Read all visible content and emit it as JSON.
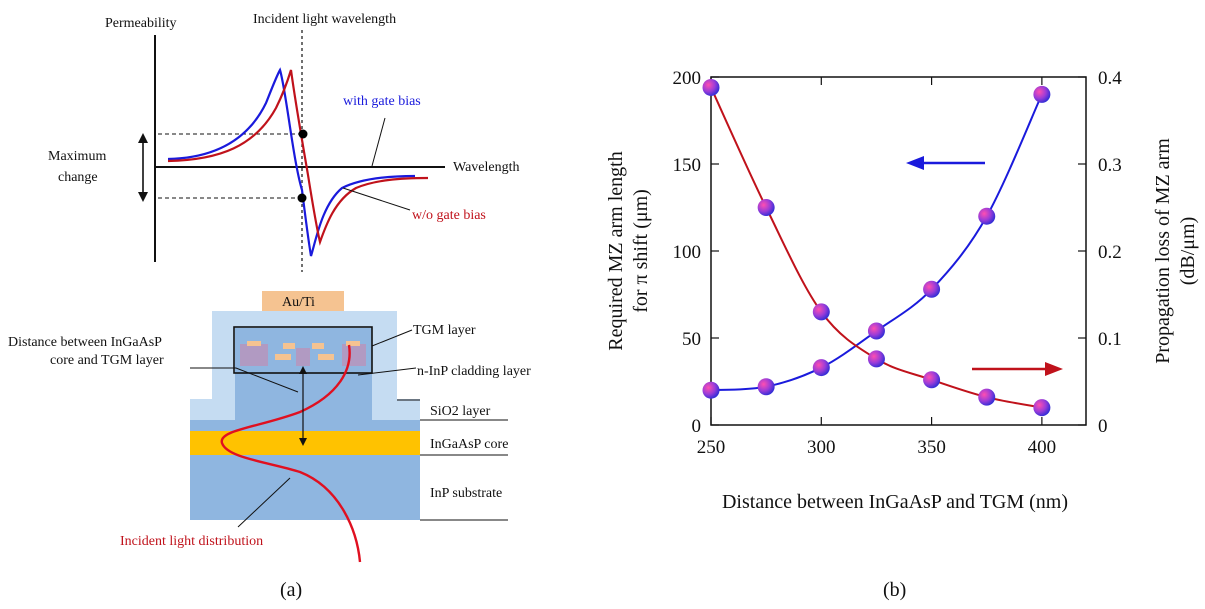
{
  "panel_a": {
    "permeability_label": "Permeability",
    "incident_wavelength_label": "Incident light wavelength",
    "with_gate_label": "with gate bias",
    "wo_gate_label": "w/o gate bias",
    "maximum_label": "Maximum",
    "change_label": "change",
    "wavelength_label": "Wavelength",
    "au_ti_label": "Au/Ti",
    "distance_label_line1": "Distance between InGaAsP",
    "distance_label_line2": "core and TGM layer",
    "tgm_layer_label": "TGM layer",
    "ninp_cladding_label": "n-InP cladding layer",
    "sio2_label": "SiO2 layer",
    "ingaasp_core_label": "InGaAsP core",
    "inp_substrate_label": "InP substrate",
    "incident_distribution_label": "Incident light distribution",
    "caption": "(a)",
    "colors": {
      "with_gate": "#1a1adc",
      "wo_gate": "#c0121b",
      "au_ti": "#f5c391",
      "core": "#ffc200",
      "substrate": "#8fb6e0",
      "sio2": "#c5dcf2",
      "tgm": "#b19ac2"
    }
  },
  "panel_b": {
    "caption": "(b)",
    "chart_data": {
      "type": "scatter",
      "xlabel": "Distance between InGaAsP and TGM (nm)",
      "ylabel_left_line1": "Required MZ arm length",
      "ylabel_left_line2": "for π shift (μm)",
      "ylabel_right_line1": "Propagation loss of MZ arm",
      "ylabel_right_line2": "(dB/μm)",
      "x": [
        250,
        275,
        300,
        325,
        350,
        375,
        400
      ],
      "xlim": [
        250,
        420
      ],
      "xticks": [
        "250",
        "300",
        "350",
        "400"
      ],
      "ylim_left": [
        0,
        200
      ],
      "yticks_left": [
        "0",
        "50",
        "100",
        "150",
        "200"
      ],
      "ylim_right": [
        0,
        0.4
      ],
      "yticks_right": [
        "0",
        "0.1",
        "0.2",
        "0.3",
        "0.4"
      ],
      "series": [
        {
          "axis": "left",
          "color": "#1a1adc",
          "values": [
            20,
            22,
            33,
            54,
            78,
            120,
            190
          ]
        },
        {
          "axis": "right",
          "color": "#c0121b",
          "values": [
            0.388,
            0.25,
            0.13,
            0.076,
            0.052,
            0.032,
            0.02
          ]
        }
      ],
      "arrows": [
        {
          "direction": "left",
          "color": "#1a1adc"
        },
        {
          "direction": "right",
          "color": "#c0121b"
        }
      ]
    }
  }
}
